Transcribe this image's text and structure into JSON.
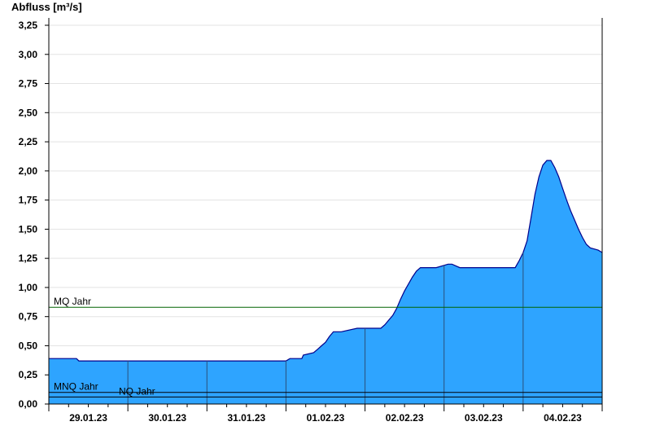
{
  "chart_data": {
    "type": "area",
    "ylabel": "Abfluss [m³/s]",
    "xlabel": "",
    "title": "",
    "ylim": [
      0,
      3.25
    ],
    "y_ticks": [
      "0,00",
      "0,25",
      "0,50",
      "0,75",
      "1,00",
      "1,25",
      "1,50",
      "1,75",
      "2,00",
      "2,25",
      "2,50",
      "2,75",
      "3,00",
      "3,25"
    ],
    "x_range_days": [
      0,
      7
    ],
    "x_tick_labels": [
      "29.01.23",
      "30.01.23",
      "31.01.23",
      "01.02.23",
      "02.02.23",
      "03.02.23",
      "04.02.23"
    ],
    "grid": true,
    "colors": {
      "area": "#2ea4ff",
      "line": "#00008b",
      "mq": "#006400",
      "nq": "#000000"
    },
    "reference_lines": [
      {
        "name": "MQ Jahr",
        "value": 0.83
      },
      {
        "name": "MNQ Jahr",
        "value": 0.1
      },
      {
        "name": "NQ Jahr",
        "value": 0.06
      }
    ],
    "series": [
      {
        "x": [
          0,
          0.35,
          0.38,
          1.0,
          2.0,
          3.0,
          3.05,
          3.2,
          3.22,
          3.35,
          3.4,
          3.45,
          3.5,
          3.55,
          3.6,
          3.65,
          3.7,
          3.9,
          4.0,
          4.1,
          4.2,
          4.25,
          4.3,
          4.35,
          4.4,
          4.45,
          4.5,
          4.55,
          4.6,
          4.65,
          4.7,
          4.75,
          4.8,
          4.85,
          4.9,
          5.05,
          5.1,
          5.2,
          5.25,
          5.5,
          5.9,
          5.95,
          6.0,
          6.05,
          6.1,
          6.15,
          6.2,
          6.25,
          6.3,
          6.35,
          6.4,
          6.45,
          6.5,
          6.55,
          6.6,
          6.65,
          6.7,
          6.75,
          6.8,
          6.85,
          6.9,
          6.95,
          7.0
        ],
        "y": [
          0.39,
          0.39,
          0.37,
          0.37,
          0.37,
          0.37,
          0.39,
          0.39,
          0.42,
          0.44,
          0.47,
          0.5,
          0.53,
          0.58,
          0.62,
          0.62,
          0.62,
          0.65,
          0.65,
          0.65,
          0.65,
          0.68,
          0.72,
          0.76,
          0.82,
          0.9,
          0.97,
          1.03,
          1.09,
          1.14,
          1.17,
          1.17,
          1.17,
          1.17,
          1.17,
          1.2,
          1.2,
          1.17,
          1.17,
          1.17,
          1.17,
          1.23,
          1.3,
          1.4,
          1.6,
          1.8,
          1.95,
          2.05,
          2.09,
          2.09,
          2.03,
          1.95,
          1.85,
          1.75,
          1.66,
          1.58,
          1.5,
          1.43,
          1.37,
          1.34,
          1.33,
          1.32,
          1.3
        ]
      }
    ]
  }
}
